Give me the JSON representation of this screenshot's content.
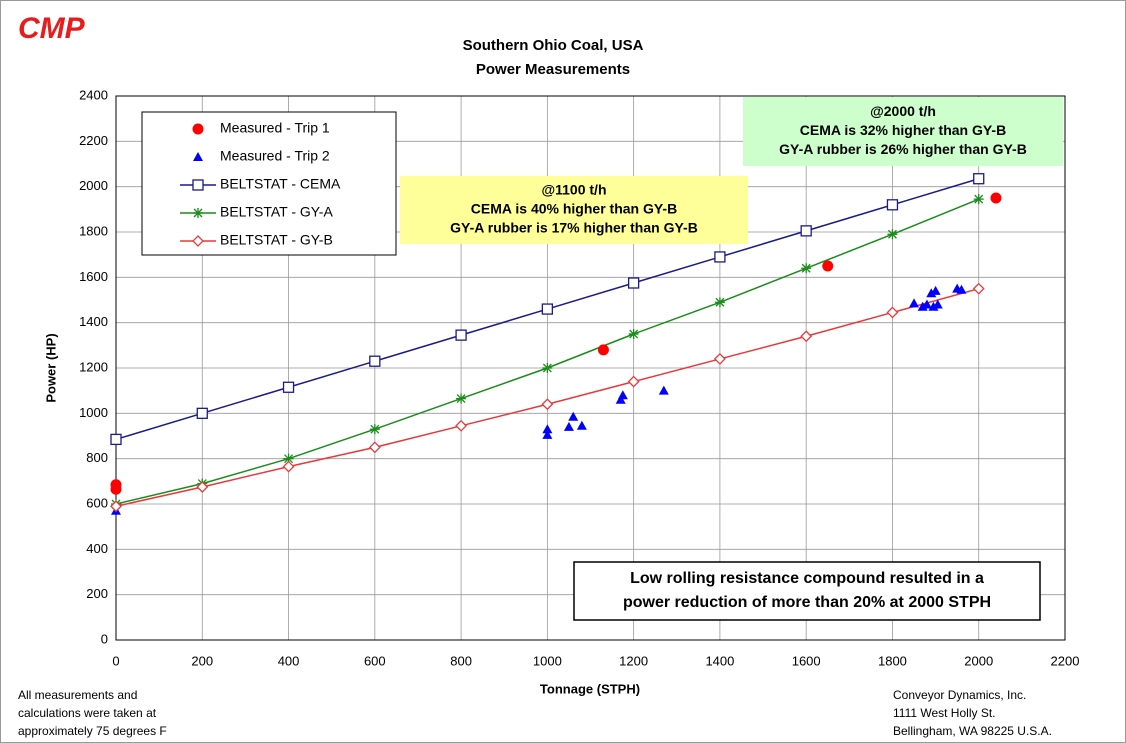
{
  "logo": "CMP",
  "chart_data": {
    "type": "scatter",
    "title": "Southern Ohio Coal, USA",
    "subtitle": "Power Measurements",
    "x_label": "Tonnage (STPH)",
    "y_label": "Power (HP)",
    "xlim": [
      0,
      2200
    ],
    "xticks": [
      0,
      200,
      400,
      600,
      800,
      1000,
      1200,
      1400,
      1600,
      1800,
      2000,
      2200
    ],
    "ylim": [
      0,
      2400
    ],
    "yticks": [
      0,
      200,
      400,
      600,
      800,
      1000,
      1200,
      1400,
      1600,
      1800,
      2000,
      2200,
      2400
    ],
    "grid": true,
    "legend": "upper left",
    "series": [
      {
        "name": "Measured - Trip 1",
        "color": "#ff0000",
        "marker": "circle",
        "line": false,
        "x": [
          0,
          0,
          1130,
          1650,
          2040
        ],
        "values": [
          685,
          665,
          1280,
          1650,
          1950
        ]
      },
      {
        "name": "Measured - Trip 2",
        "color": "#0000ff",
        "marker": "triangle",
        "line": false,
        "x": [
          0,
          1000,
          1000,
          1050,
          1060,
          1080,
          1170,
          1175,
          1270,
          1850,
          1870,
          1880,
          1890,
          1895,
          1900,
          1905,
          1950,
          1960
        ],
        "values": [
          570,
          930,
          905,
          940,
          985,
          945,
          1060,
          1080,
          1100,
          1485,
          1470,
          1480,
          1530,
          1470,
          1540,
          1480,
          1550,
          1545
        ]
      },
      {
        "name": "BELTSTAT - CEMA",
        "color": "#1a1a8c",
        "marker": "square",
        "line": true,
        "x": [
          0,
          200,
          400,
          600,
          800,
          1000,
          1200,
          1400,
          1600,
          1800,
          2000
        ],
        "values": [
          885,
          1000,
          1115,
          1230,
          1345,
          1460,
          1575,
          1690,
          1805,
          1920,
          2035
        ]
      },
      {
        "name": "BELTSTAT - GY-A",
        "color": "#1a8c1a",
        "marker": "star",
        "line": true,
        "x": [
          0,
          200,
          400,
          600,
          800,
          1000,
          1200,
          1400,
          1600,
          1800,
          2000
        ],
        "values": [
          600,
          690,
          800,
          930,
          1065,
          1200,
          1350,
          1490,
          1640,
          1790,
          1945
        ]
      },
      {
        "name": "BELTSTAT - GY-B",
        "color": "#e8383a",
        "marker": "diamond",
        "line": true,
        "x": [
          0,
          200,
          400,
          600,
          800,
          1000,
          1200,
          1400,
          1600,
          1800,
          2000
        ],
        "values": [
          590,
          675,
          765,
          850,
          945,
          1040,
          1140,
          1240,
          1340,
          1445,
          1550
        ]
      }
    ],
    "annotations": [
      {
        "lines": [
          "@1100 t/h",
          "CEMA is 40% higher  than GY-B",
          "GY-A rubber is 17% higher than GY-B"
        ],
        "color": "#ffff99"
      },
      {
        "lines": [
          "@2000 t/h",
          "CEMA is 32% higher  than GY-B",
          "GY-A rubber is 26% higher than GY-B"
        ],
        "color": "#ccffcc"
      },
      {
        "lines": [
          "Low rolling resistance compound resulted in a",
          "power reduction of more than 20% at 2000 STPH"
        ],
        "color": "#ffffff"
      }
    ]
  },
  "footer": {
    "left": [
      "All measurements and",
      "calculations were taken at",
      "approximately 75 degrees F"
    ],
    "right": [
      "Conveyor Dynamics, Inc.",
      "1111 West Holly St.",
      "Bellingham, WA 98225  U.S.A."
    ]
  }
}
